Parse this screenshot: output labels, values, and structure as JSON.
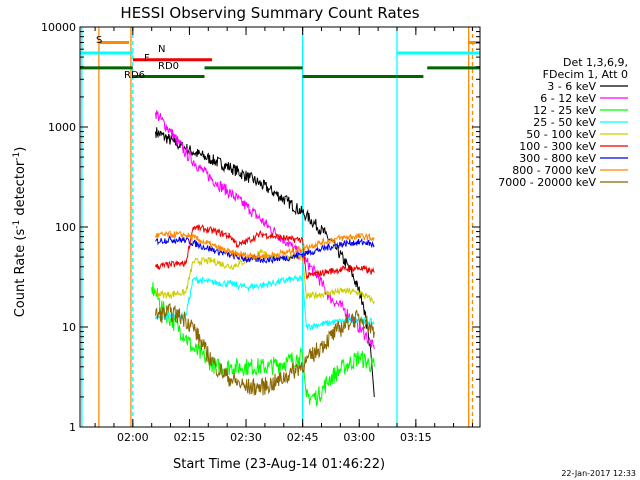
{
  "chart_data": {
    "type": "line",
    "title": "HESSI Observing Summary Count Rates",
    "xlabel": "Start Time (23-Aug-14 01:46:22)",
    "ylabel_main": "Count Rate (s",
    "ylabel_sup1": "-1",
    "ylabel_mid": " detector",
    "ylabel_sup2": "-1",
    "ylabel_end": ")",
    "y_scale": "log",
    "ylim": [
      1,
      10000
    ],
    "xlim_minutes": [
      0,
      106
    ],
    "x_ticks": [
      {
        "label": "02:00",
        "min": 14
      },
      {
        "label": "02:15",
        "min": 29
      },
      {
        "label": "02:30",
        "min": 44
      },
      {
        "label": "02:45",
        "min": 59
      },
      {
        "label": "03:00",
        "min": 74
      },
      {
        "label": "03:15",
        "min": 89
      }
    ],
    "y_ticks": [
      {
        "label": "1",
        "value": 1
      },
      {
        "label": "10",
        "value": 10
      },
      {
        "label": "100",
        "value": 100
      },
      {
        "label": "1000",
        "value": 1000
      },
      {
        "label": "10000",
        "value": 10000
      }
    ],
    "legend_header": [
      "Det 1,3,6,9,",
      "FDecim 1, Att 0"
    ],
    "legend_placement": "right",
    "series": [
      {
        "name": "3 - 6 keV",
        "color": "#000000",
        "points": [
          [
            20,
            900
          ],
          [
            25,
            700
          ],
          [
            30,
            560
          ],
          [
            35,
            470
          ],
          [
            40,
            390
          ],
          [
            45,
            310
          ],
          [
            50,
            240
          ],
          [
            55,
            180
          ],
          [
            60,
            130
          ],
          [
            65,
            85
          ],
          [
            68,
            60
          ],
          [
            72,
            35
          ],
          [
            75,
            18
          ],
          [
            77,
            6
          ],
          [
            78,
            2
          ]
        ]
      },
      {
        "name": "6 - 12 keV",
        "color": "#ff00ff",
        "points": [
          [
            20,
            1400
          ],
          [
            24,
            900
          ],
          [
            28,
            550
          ],
          [
            32,
            380
          ],
          [
            36,
            280
          ],
          [
            40,
            215
          ],
          [
            45,
            150
          ],
          [
            50,
            100
          ],
          [
            55,
            70
          ],
          [
            60,
            45
          ],
          [
            63,
            32
          ],
          [
            66,
            20
          ],
          [
            70,
            15
          ],
          [
            73,
            11
          ],
          [
            76,
            8
          ],
          [
            78,
            6
          ]
        ]
      },
      {
        "name": "12 - 25 keV",
        "color": "#00ff00",
        "points": [
          [
            19,
            25
          ],
          [
            20,
            22
          ],
          [
            22,
            15
          ],
          [
            24,
            12
          ],
          [
            26,
            10
          ],
          [
            28,
            8
          ],
          [
            30,
            6
          ],
          [
            33,
            5
          ],
          [
            36,
            4
          ],
          [
            40,
            4
          ],
          [
            45,
            4
          ],
          [
            50,
            4
          ],
          [
            55,
            4.5
          ],
          [
            58,
            5
          ],
          [
            59,
            5
          ],
          [
            60,
            2
          ],
          [
            63,
            2
          ],
          [
            66,
            3
          ],
          [
            70,
            4
          ],
          [
            74,
            5
          ],
          [
            78,
            4
          ]
        ]
      },
      {
        "name": "25 - 50 keV",
        "color": "#00ffff",
        "points": [
          [
            20,
            12
          ],
          [
            22,
            12.5
          ],
          [
            24,
            13
          ],
          [
            26,
            13
          ],
          [
            28,
            13
          ],
          [
            30,
            30
          ],
          [
            35,
            28
          ],
          [
            40,
            27
          ],
          [
            44,
            25
          ],
          [
            48,
            26
          ],
          [
            52,
            28
          ],
          [
            56,
            30
          ],
          [
            59,
            30
          ],
          [
            60,
            10
          ],
          [
            63,
            10.5
          ],
          [
            66,
            11
          ],
          [
            70,
            11.5
          ],
          [
            74,
            12
          ],
          [
            78,
            11
          ]
        ]
      },
      {
        "name": "50 - 100 keV",
        "color": "#cccc00",
        "points": [
          [
            20,
            22
          ],
          [
            22,
            21
          ],
          [
            24,
            21
          ],
          [
            26,
            22
          ],
          [
            28,
            22
          ],
          [
            30,
            45
          ],
          [
            35,
            46
          ],
          [
            40,
            40
          ],
          [
            44,
            46
          ],
          [
            48,
            55
          ],
          [
            52,
            50
          ],
          [
            56,
            50
          ],
          [
            59,
            50
          ],
          [
            60,
            20
          ],
          [
            63,
            21
          ],
          [
            66,
            22
          ],
          [
            70,
            23
          ],
          [
            74,
            22
          ],
          [
            78,
            18
          ]
        ]
      },
      {
        "name": "100 - 300 keV",
        "color": "#ee0000",
        "points": [
          [
            20,
            40
          ],
          [
            24,
            42
          ],
          [
            28,
            43
          ],
          [
            30,
            100
          ],
          [
            33,
            95
          ],
          [
            36,
            90
          ],
          [
            40,
            80
          ],
          [
            42,
            65
          ],
          [
            45,
            75
          ],
          [
            48,
            85
          ],
          [
            52,
            80
          ],
          [
            56,
            75
          ],
          [
            59,
            75
          ],
          [
            60,
            32
          ],
          [
            63,
            34
          ],
          [
            66,
            36
          ],
          [
            70,
            38
          ],
          [
            74,
            39
          ],
          [
            78,
            35
          ]
        ]
      },
      {
        "name": "300 - 800 keV",
        "color": "#0000ee",
        "points": [
          [
            20,
            72
          ],
          [
            24,
            75
          ],
          [
            28,
            74
          ],
          [
            32,
            65
          ],
          [
            36,
            58
          ],
          [
            40,
            52
          ],
          [
            44,
            48
          ],
          [
            48,
            47
          ],
          [
            52,
            48
          ],
          [
            56,
            50
          ],
          [
            60,
            55
          ],
          [
            64,
            60
          ],
          [
            68,
            66
          ],
          [
            72,
            70
          ],
          [
            76,
            70
          ],
          [
            78,
            65
          ]
        ]
      },
      {
        "name": "800 - 7000 keV",
        "color": "#ff8800",
        "points": [
          [
            20,
            82
          ],
          [
            24,
            84
          ],
          [
            28,
            83
          ],
          [
            32,
            73
          ],
          [
            36,
            63
          ],
          [
            40,
            55
          ],
          [
            44,
            52
          ],
          [
            48,
            51
          ],
          [
            52,
            53
          ],
          [
            56,
            57
          ],
          [
            60,
            63
          ],
          [
            64,
            70
          ],
          [
            68,
            76
          ],
          [
            72,
            80
          ],
          [
            76,
            80
          ],
          [
            78,
            76
          ]
        ]
      },
      {
        "name": "7000 - 20000 keV",
        "color": "#886600",
        "points": [
          [
            20,
            13
          ],
          [
            24,
            14
          ],
          [
            28,
            12
          ],
          [
            30,
            10
          ],
          [
            33,
            6
          ],
          [
            36,
            4
          ],
          [
            40,
            3
          ],
          [
            44,
            2.5
          ],
          [
            48,
            2.5
          ],
          [
            52,
            2.8
          ],
          [
            56,
            3.5
          ],
          [
            60,
            4.5
          ],
          [
            64,
            6.5
          ],
          [
            68,
            9
          ],
          [
            72,
            12
          ],
          [
            75,
            12
          ],
          [
            78,
            9
          ]
        ]
      }
    ],
    "status_labels": [
      {
        "text": "S",
        "color": "#ff8800"
      },
      {
        "text": "N",
        "color": "#00ffff"
      },
      {
        "text": "F",
        "color": "#ee0000"
      },
      {
        "text": "RD0",
        "color": "#006600"
      },
      {
        "text": "RD6",
        "color": "#006600"
      }
    ],
    "status_bars": [
      {
        "color": "#ff8800",
        "value": 7000,
        "segments": [
          [
            5,
            13
          ],
          [
            103,
            106
          ]
        ]
      },
      {
        "color": "#00ffff",
        "value": 5500,
        "segments": [
          [
            0,
            14
          ],
          [
            84,
            106
          ]
        ]
      },
      {
        "color": "#ee0000",
        "value": 4700,
        "segments": [
          [
            14,
            35
          ]
        ]
      },
      {
        "color": "#006600",
        "value": 3900,
        "segments": [
          [
            0,
            14
          ],
          [
            33,
            59
          ],
          [
            92,
            106
          ]
        ]
      },
      {
        "color": "#006600",
        "value": 3200,
        "segments": [
          [
            14,
            33
          ],
          [
            59,
            91
          ]
        ]
      }
    ],
    "vertical_lines": [
      {
        "min": 0.5,
        "color": "#00ffff",
        "dashed": false
      },
      {
        "min": 5,
        "color": "#ff8800",
        "dashed": false
      },
      {
        "min": 13.5,
        "color": "#ff8800",
        "dashed": false
      },
      {
        "min": 14,
        "color": "#00ffff",
        "dashed": true
      },
      {
        "min": 59,
        "color": "#00ffff",
        "dashed": false
      },
      {
        "min": 84,
        "color": "#00ffff",
        "dashed": false
      },
      {
        "min": 103,
        "color": "#ff8800",
        "dashed": false
      },
      {
        "min": 104,
        "color": "#ff8800",
        "dashed": true
      }
    ],
    "footer_date": "22-Jan-2017 12:33"
  }
}
